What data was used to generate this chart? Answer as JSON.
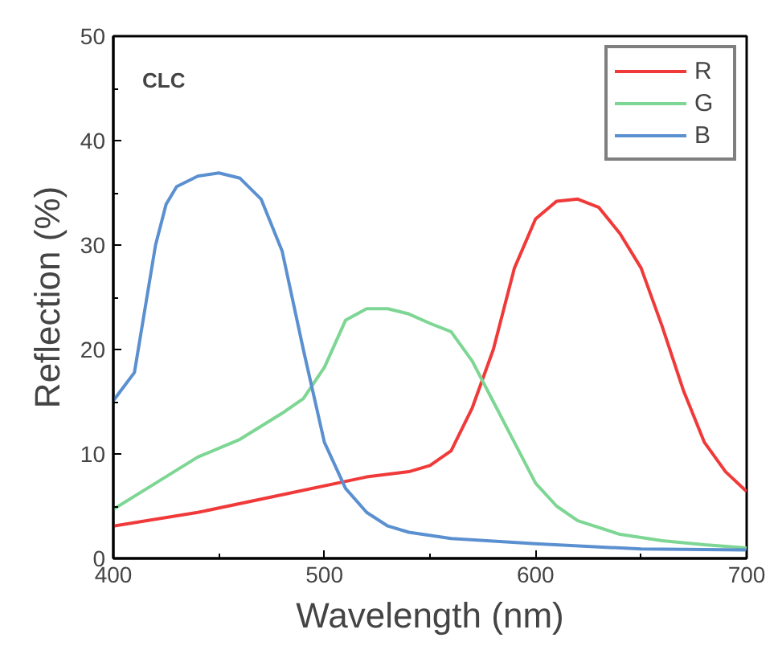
{
  "chart_data": {
    "type": "line",
    "xlabel": "Wavelength (nm)",
    "ylabel": "Reflection (%)",
    "annotations": [
      "CLC"
    ],
    "xlim": [
      400,
      700
    ],
    "ylim": [
      0,
      50
    ],
    "xticks": [
      400,
      500,
      600,
      700
    ],
    "yticks": [
      0,
      10,
      20,
      30,
      40,
      50
    ],
    "grid": false,
    "legend": "top right",
    "marker": "none",
    "line_style": "solid",
    "series": [
      {
        "name": "R",
        "color": "#f03a3a",
        "x": [
          400,
          440,
          480,
          520,
          540,
          550,
          560,
          570,
          580,
          590,
          600,
          610,
          620,
          630,
          640,
          650,
          660,
          670,
          680,
          690,
          700
        ],
        "values": [
          3.1,
          4.4,
          6.1,
          7.8,
          8.3,
          8.9,
          10.3,
          14.4,
          20,
          27.8,
          32.5,
          34.2,
          34.4,
          33.6,
          31.1,
          27.8,
          22.2,
          16.1,
          11.1,
          8.3,
          6.4
        ]
      },
      {
        "name": "G",
        "color": "#7dd693",
        "x": [
          400,
          420,
          440,
          460,
          480,
          490,
          500,
          510,
          520,
          530,
          540,
          550,
          560,
          570,
          580,
          590,
          600,
          610,
          620,
          640,
          660,
          680,
          700
        ],
        "values": [
          4.7,
          7.2,
          9.7,
          11.4,
          13.9,
          15.3,
          18.3,
          22.8,
          23.9,
          23.9,
          23.4,
          22.5,
          21.7,
          18.9,
          15,
          11.1,
          7.2,
          5,
          3.6,
          2.3,
          1.7,
          1.3,
          1.0
        ]
      },
      {
        "name": "B",
        "color": "#5b90d0",
        "x": [
          400,
          410,
          420,
          425,
          430,
          440,
          450,
          460,
          470,
          480,
          490,
          500,
          510,
          520,
          530,
          540,
          560,
          600,
          650,
          700
        ],
        "values": [
          15.1,
          17.8,
          30,
          33.9,
          35.6,
          36.6,
          36.9,
          36.4,
          34.4,
          29.4,
          20,
          11.1,
          6.7,
          4.4,
          3.1,
          2.5,
          1.9,
          1.4,
          0.9,
          0.8
        ]
      }
    ]
  }
}
